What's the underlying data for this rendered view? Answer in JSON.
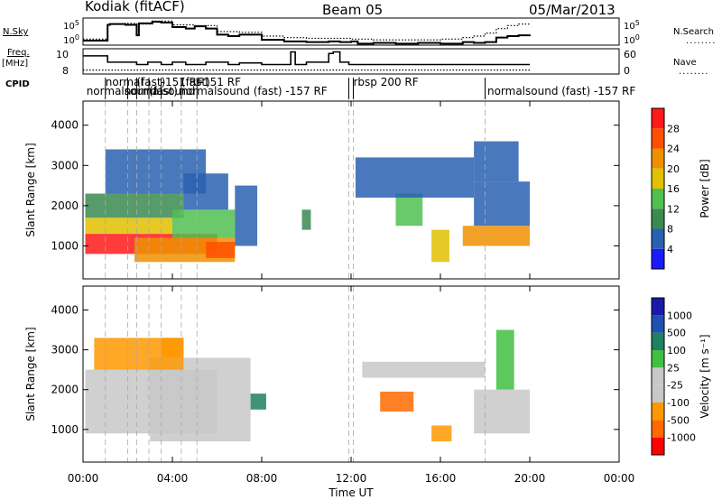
{
  "header": {
    "title": "Kodiak (fitACF)",
    "beam": "Beam 05",
    "date": "05/Mar/2013"
  },
  "left_labels": {
    "nsky": "N.Sky",
    "freq_line1": "Freq.",
    "freq_line2": "[MHz]",
    "cpid": "CPID"
  },
  "right_labels": {
    "nsearch": "N.Search",
    "nave": "Nave",
    "dots": "........"
  },
  "chart_data": [
    {
      "type": "line",
      "name": "noise",
      "ylabels_left": [
        "10^5",
        "10^0"
      ],
      "ylabels_right": [
        "10^5",
        "10^0"
      ],
      "series": [
        {
          "name": "N.Sky",
          "style": "solid",
          "x": [
            0,
            0.4,
            1.1,
            1.2,
            1.9,
            2.4,
            2.5,
            3.1,
            3.5,
            4.0,
            4.6,
            5.0,
            5.5,
            6.0,
            6.5,
            7.0,
            8.0,
            9.0,
            10.0,
            11.0,
            11.5,
            12.0,
            12.3,
            13.0,
            14.0,
            15.0,
            16.0,
            17.0,
            17.5,
            18.0,
            18.5,
            19.0,
            19.5,
            20.0
          ],
          "y": [
            1.4,
            1.4,
            3.5,
            3.6,
            3.5,
            2.1,
            3.7,
            3.9,
            3.8,
            3.2,
            3.0,
            3.3,
            3.0,
            2.2,
            2.0,
            2.2,
            1.5,
            1.3,
            1.2,
            1.3,
            1.2,
            1.3,
            1.0,
            1.1,
            1.0,
            1.1,
            1.0,
            1.2,
            1.1,
            1.2,
            1.8,
            2.0,
            2.1,
            2.2
          ]
        },
        {
          "name": "N.Search",
          "style": "dotted",
          "x": [
            0,
            0.4,
            1.1,
            1.9,
            2.4,
            3.1,
            4.0,
            5.0,
            6.0,
            7.0,
            8.0,
            9.0,
            10.0,
            11.0,
            12.0,
            13.0,
            14.0,
            15.0,
            16.0,
            17.0,
            17.5,
            18.0,
            18.5,
            19.0,
            19.5,
            20.0
          ],
          "y": [
            1.6,
            1.6,
            3.6,
            3.7,
            3.6,
            4.0,
            3.5,
            3.4,
            2.6,
            2.5,
            2.0,
            1.8,
            1.7,
            1.7,
            1.6,
            1.5,
            1.5,
            1.5,
            1.6,
            1.8,
            2.0,
            2.4,
            3.0,
            3.4,
            3.6,
            3.5
          ]
        }
      ]
    },
    {
      "type": "line",
      "name": "frequency",
      "ylabels_left": [
        "10",
        "8"
      ],
      "ylabels_right": [
        "60",
        "0"
      ],
      "series": [
        {
          "name": "Freq",
          "style": "solid",
          "x": [
            0,
            1.1,
            1.1,
            2.4,
            2.4,
            2.9,
            2.9,
            3.5,
            3.5,
            4.0,
            4.0,
            4.6,
            4.6,
            5.5,
            5.5,
            6.5,
            6.5,
            7.0,
            7.0,
            8.0,
            8.0,
            9.3,
            9.3,
            9.5,
            9.5,
            10.0,
            10.0,
            11.0,
            11.0,
            11.2,
            11.2,
            11.5,
            11.5,
            11.9,
            11.9,
            20.0
          ],
          "y": [
            10.1,
            10.1,
            9.3,
            9.3,
            9.0,
            9.0,
            9.3,
            9.3,
            9.0,
            9.0,
            9.3,
            9.3,
            9.0,
            9.0,
            9.3,
            9.3,
            9.0,
            9.0,
            9.2,
            9.2,
            9.0,
            9.0,
            10.6,
            10.6,
            9.0,
            9.0,
            9.3,
            9.3,
            10.4,
            10.4,
            10.6,
            10.6,
            9.3,
            9.3,
            9.0,
            9.0
          ]
        },
        {
          "name": "Nave",
          "style": "dotted",
          "x": [
            0,
            20.0
          ],
          "y": [
            8.3,
            8.3
          ]
        }
      ]
    },
    {
      "type": "table",
      "name": "cpid",
      "entries": [
        {
          "label": "normalsound",
          "x": 0.15,
          "row": 1
        },
        {
          "label": "normal",
          "x": 1.0,
          "row": 0
        },
        {
          "label": "(fast)",
          "x": 2.4,
          "row": 0
        },
        {
          "label": "normalsound",
          "x": 1.85,
          "row": 1
        },
        {
          "label": "(fast)",
          "x": 2.95,
          "row": 1
        },
        {
          "label": "-151 RF",
          "x": 3.5,
          "row": 0
        },
        {
          "label": "(fast)",
          "x": 4.4,
          "row": 0
        },
        {
          "label": "-151 RF",
          "x": 5.2,
          "row": 0
        },
        {
          "label": "normalsound (fast) -157 RF",
          "x": 4.3,
          "row": 1
        },
        {
          "label": "rbsp 200 RF",
          "x": 12.1,
          "row": 0
        },
        {
          "label": "normalsound (fast) -157 RF",
          "x": 18.1,
          "row": 1
        }
      ],
      "boundaries": [
        1.0,
        2.0,
        2.4,
        2.95,
        3.5,
        4.4,
        5.1,
        11.9,
        12.1,
        18.0
      ]
    },
    {
      "type": "heatmap",
      "name": "power",
      "ylabel": "Slant Range [km]",
      "yticks": [
        1000,
        2000,
        3000,
        4000
      ],
      "ylim": [
        180,
        4600
      ],
      "colorbar": {
        "label": "Power [dB]",
        "ticks": [
          "4",
          "8",
          "12",
          "16",
          "20",
          "24",
          "28"
        ]
      },
      "patches": [
        {
          "x0": 0.1,
          "x1": 6.0,
          "r0": 800,
          "r1": 1300,
          "level": 28
        },
        {
          "x0": 0.1,
          "x1": 4.0,
          "r0": 1300,
          "r1": 1700,
          "level": 18
        },
        {
          "x0": 0.1,
          "x1": 4.5,
          "r0": 1700,
          "r1": 2300,
          "level": 8
        },
        {
          "x0": 2.3,
          "x1": 6.8,
          "r0": 600,
          "r1": 1200,
          "level": 22
        },
        {
          "x0": 4.0,
          "x1": 6.8,
          "r0": 1200,
          "r1": 1900,
          "level": 14
        },
        {
          "x0": 4.5,
          "x1": 6.5,
          "r0": 1900,
          "r1": 2800,
          "level": 6
        },
        {
          "x0": 5.5,
          "x1": 6.8,
          "r0": 700,
          "r1": 1100,
          "level": 26
        },
        {
          "x0": 6.8,
          "x1": 7.8,
          "r0": 1000,
          "r1": 2500,
          "level": 6
        },
        {
          "x0": 1.0,
          "x1": 5.5,
          "r0": 2300,
          "r1": 3400,
          "level": 4
        },
        {
          "x0": 9.8,
          "x1": 10.2,
          "r0": 1400,
          "r1": 1900,
          "level": 10
        },
        {
          "x0": 14.0,
          "x1": 15.2,
          "r0": 1500,
          "r1": 2300,
          "level": 12
        },
        {
          "x0": 12.2,
          "x1": 17.5,
          "r0": 2200,
          "r1": 3200,
          "level": 5
        },
        {
          "x0": 17.0,
          "x1": 18.0,
          "r0": 1000,
          "r1": 1500,
          "level": 20
        },
        {
          "x0": 18.0,
          "x1": 20.0,
          "r0": 1000,
          "r1": 1500,
          "level": 22
        },
        {
          "x0": 17.5,
          "x1": 20.0,
          "r0": 1500,
          "r1": 2600,
          "level": 6
        },
        {
          "x0": 17.5,
          "x1": 19.5,
          "r0": 2600,
          "r1": 3600,
          "level": 4
        },
        {
          "x0": 15.6,
          "x1": 16.4,
          "r0": 600,
          "r1": 1400,
          "level": 18
        }
      ]
    },
    {
      "type": "heatmap",
      "name": "velocity",
      "ylabel": "Slant Range [km]",
      "yticks": [
        1000,
        2000,
        3000,
        4000
      ],
      "ylim": [
        180,
        4600
      ],
      "colorbar": {
        "label": "Velocity [m s⁻¹]",
        "ticks": [
          "1000",
          "500",
          "100",
          "25",
          "-25",
          "-100",
          "-500",
          "-1000"
        ]
      },
      "patches": [
        {
          "x0": 0.1,
          "x1": 6.0,
          "r0": 900,
          "r1": 2500,
          "level": 0
        },
        {
          "x0": 3.0,
          "x1": 7.5,
          "r0": 700,
          "r1": 2800,
          "level": 0
        },
        {
          "x0": 0.5,
          "x1": 4.5,
          "r0": 2500,
          "r1": 3300,
          "level": -60
        },
        {
          "x0": 3.5,
          "x1": 4.5,
          "r0": 2800,
          "r1": 3300,
          "level": -100
        },
        {
          "x0": 7.5,
          "x1": 8.2,
          "r0": 1500,
          "r1": 1900,
          "level": 200
        },
        {
          "x0": 13.3,
          "x1": 14.8,
          "r0": 1450,
          "r1": 1950,
          "level": -400
        },
        {
          "x0": 12.5,
          "x1": 18.0,
          "r0": 2300,
          "r1": 2700,
          "level": 0
        },
        {
          "x0": 17.5,
          "x1": 20.0,
          "r0": 900,
          "r1": 2000,
          "level": 0
        },
        {
          "x0": 18.5,
          "x1": 19.3,
          "r0": 2000,
          "r1": 3500,
          "level": 100
        },
        {
          "x0": 15.6,
          "x1": 16.5,
          "r0": 700,
          "r1": 1100,
          "level": -60
        }
      ]
    },
    {
      "type": "axis",
      "name": "time",
      "xlabel": "Time UT",
      "xticks": [
        "00:00",
        "04:00",
        "08:00",
        "12:00",
        "16:00",
        "20:00",
        "00:00"
      ],
      "xlim": [
        0,
        24
      ]
    }
  ],
  "colors": {
    "power": [
      "#1a1aff",
      "#2a60b0",
      "#3b8a50",
      "#50c050",
      "#e0c000",
      "#f09000",
      "#ff5000",
      "#ff1a1a"
    ],
    "velocity": [
      "#ff0000",
      "#ff6a00",
      "#ff9800",
      "#c8c8c8",
      "#c8c8c8",
      "#40c040",
      "#208060",
      "#2050b0",
      "#1a1aaa"
    ]
  }
}
